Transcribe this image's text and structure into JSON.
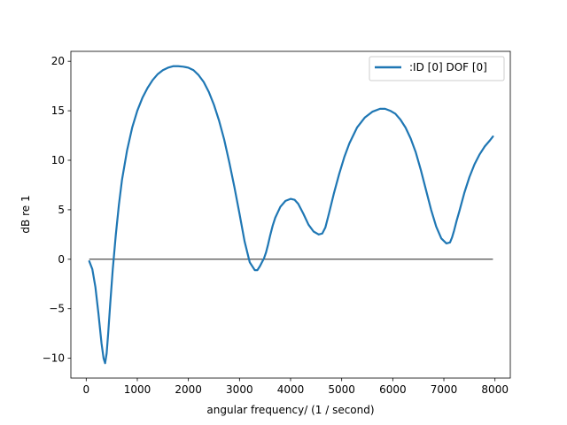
{
  "chart_data": {
    "type": "line",
    "title": "",
    "xlabel": "angular frequency/ (1 / second)",
    "ylabel": "dB re 1",
    "xlim": [
      -300,
      8300
    ],
    "ylim": [
      -12,
      21
    ],
    "xticks": [
      0,
      1000,
      2000,
      3000,
      4000,
      5000,
      6000,
      7000,
      8000
    ],
    "xtick_labels": [
      "0",
      "1000",
      "2000",
      "3000",
      "4000",
      "5000",
      "6000",
      "7000",
      "8000"
    ],
    "yticks": [
      -10,
      -5,
      0,
      5,
      10,
      15,
      20
    ],
    "ytick_labels": [
      "−10",
      "−5",
      "0",
      "5",
      "10",
      "15",
      "20"
    ],
    "grid": false,
    "legend": {
      "position": "upper-right"
    },
    "reference_line": {
      "y": 0,
      "x_range": [
        60,
        7960
      ],
      "color": "#000000"
    },
    "series": [
      {
        "name": ":ID [0] DOF [0]",
        "color": "#1f77b4",
        "x": [
          60,
          120,
          180,
          240,
          300,
          340,
          370,
          400,
          430,
          470,
          520,
          580,
          640,
          700,
          800,
          900,
          1000,
          1100,
          1200,
          1300,
          1400,
          1500,
          1600,
          1700,
          1800,
          1900,
          1950,
          2000,
          2100,
          2200,
          2300,
          2400,
          2500,
          2600,
          2700,
          2800,
          2900,
          3000,
          3100,
          3200,
          3300,
          3350,
          3400,
          3450,
          3480,
          3520,
          3560,
          3600,
          3650,
          3700,
          3800,
          3900,
          4000,
          4080,
          4150,
          4250,
          4350,
          4450,
          4550,
          4620,
          4680,
          4750,
          4850,
          4950,
          5050,
          5150,
          5300,
          5450,
          5600,
          5750,
          5850,
          5950,
          6050,
          6150,
          6250,
          6350,
          6450,
          6550,
          6650,
          6750,
          6850,
          6950,
          7050,
          7120,
          7160,
          7200,
          7250,
          7300,
          7400,
          7500,
          7600,
          7700,
          7800,
          7900,
          7960
        ],
        "values": [
          -0.2,
          -1.0,
          -2.8,
          -5.5,
          -8.5,
          -10.0,
          -10.5,
          -9.5,
          -7.5,
          -4.5,
          -1.0,
          2.5,
          5.5,
          8.0,
          11.0,
          13.3,
          15.0,
          16.3,
          17.3,
          18.1,
          18.7,
          19.1,
          19.35,
          19.5,
          19.5,
          19.45,
          19.4,
          19.35,
          19.1,
          18.6,
          17.9,
          16.9,
          15.6,
          14.0,
          12.1,
          9.8,
          7.3,
          4.6,
          1.8,
          -0.3,
          -1.1,
          -1.1,
          -0.7,
          -0.2,
          0.1,
          0.7,
          1.5,
          2.4,
          3.4,
          4.2,
          5.3,
          5.9,
          6.1,
          6.0,
          5.6,
          4.6,
          3.5,
          2.8,
          2.5,
          2.6,
          3.2,
          4.6,
          6.7,
          8.6,
          10.3,
          11.7,
          13.3,
          14.3,
          14.9,
          15.2,
          15.2,
          15.0,
          14.7,
          14.1,
          13.3,
          12.2,
          10.8,
          9.0,
          7.0,
          5.0,
          3.3,
          2.1,
          1.6,
          1.7,
          2.2,
          2.9,
          3.9,
          4.8,
          6.7,
          8.3,
          9.6,
          10.6,
          11.4,
          12.0,
          12.4
        ]
      }
    ]
  }
}
